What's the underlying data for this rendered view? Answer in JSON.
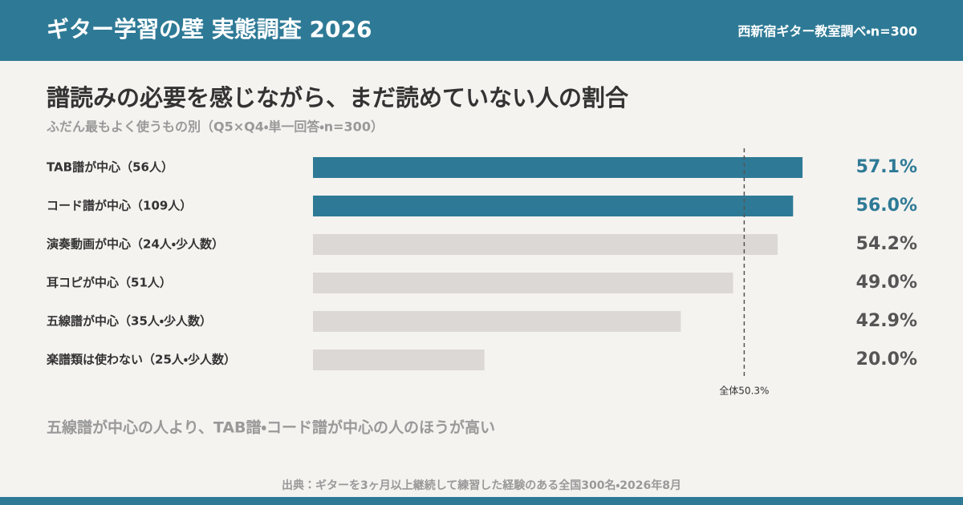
{
  "header": {
    "title": "ギター学習の壁 実態調査 2026",
    "credit": "西新宿ギター教室調べ・n=300"
  },
  "chart_data": {
    "type": "bar",
    "orientation": "horizontal",
    "title": "譜読みの必要を感じながら、まだ読めていない人の割合",
    "subtitle": "ふだん最もよく使うもの別（Q5×Q4・単一回答・n=300）",
    "categories": [
      "TAB譜が中心（56人）",
      "コード譜が中心（109人）",
      "演奏動画が中心（24人・少人数）",
      "耳コピが中心（51人）",
      "五線譜が中心（35人・少人数）",
      "楽譜類は使わない（25人・少人数）"
    ],
    "values": [
      57.1,
      56.0,
      54.2,
      49.0,
      42.9,
      20.0
    ],
    "value_labels": [
      "57.1%",
      "56.0%",
      "54.2%",
      "49.0%",
      "42.9%",
      "20.0%"
    ],
    "colors": [
      "#2e7a96",
      "#2e7a96",
      "#dcd8d5",
      "#dcd8d5",
      "#dcd8d5",
      "#dcd8d5"
    ],
    "xlim": [
      0,
      60
    ],
    "reference": {
      "value": 50.3,
      "label": "全体50.3%"
    },
    "annotation": "五線譜が中心の人より、TAB譜・コード譜が中心の人のほうが高い",
    "source": "出典：ギターを3ヶ月以上継続して練習した経験のある全国300名・2026年8月"
  }
}
